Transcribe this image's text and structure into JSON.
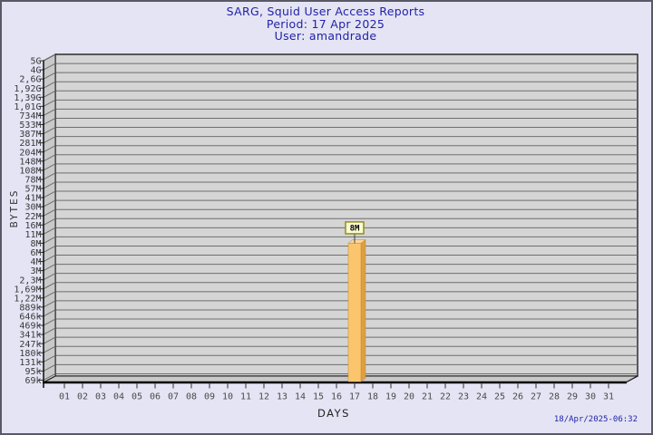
{
  "header": {
    "title": "SARG, Squid User Access Reports",
    "period": "Period: 17 Apr 2025",
    "user": "User: amandrade"
  },
  "footer": {
    "timestamp": "18/Apr/2025-06:32"
  },
  "chart_data": {
    "type": "bar",
    "title": "SARG, Squid User Access Reports",
    "xlabel": "DAYS",
    "ylabel": "BYTES",
    "y_scale": "logarithmic",
    "grid": true,
    "legend": null,
    "categories": [
      "01",
      "02",
      "03",
      "04",
      "05",
      "06",
      "07",
      "08",
      "09",
      "10",
      "11",
      "12",
      "13",
      "14",
      "15",
      "16",
      "17",
      "18",
      "19",
      "20",
      "21",
      "22",
      "23",
      "24",
      "25",
      "26",
      "27",
      "28",
      "29",
      "30",
      "31"
    ],
    "y_tick_labels": [
      "5G",
      "4G",
      "2,6G",
      "1,92G",
      "1,39G",
      "1,01G",
      "734M",
      "533M",
      "387M",
      "281M",
      "204M",
      "148M",
      "108M",
      "78M",
      "57M",
      "41M",
      "30M",
      "22M",
      "16M",
      "11M",
      "8M",
      "6M",
      "4M",
      "3M",
      "2,3M",
      "1,69M",
      "1,22M",
      "889k",
      "646k",
      "469k",
      "341k",
      "247k",
      "180k",
      "131k",
      "95k",
      "69k"
    ],
    "bars": [
      {
        "category": "17",
        "label": "8M",
        "approx_bytes": 8000000
      }
    ]
  },
  "colors": {
    "background": "#E4E4F4",
    "border": "#5A5A66",
    "title_text": "#2222A8",
    "plot_plane": "#D5D5D5",
    "wall": "#C9C9C9",
    "gridline": "#6E6E6E",
    "frame_line": "#1F1F1F",
    "tick_text": "#3C3C3C",
    "bar_front": "#FBC56E",
    "bar_side": "#DE9F42",
    "bar_top": "#FCD79B",
    "bar_outline": "#C18A33",
    "value_box_bg": "#FAFAD2",
    "value_box_border": "#8F8F1B"
  }
}
